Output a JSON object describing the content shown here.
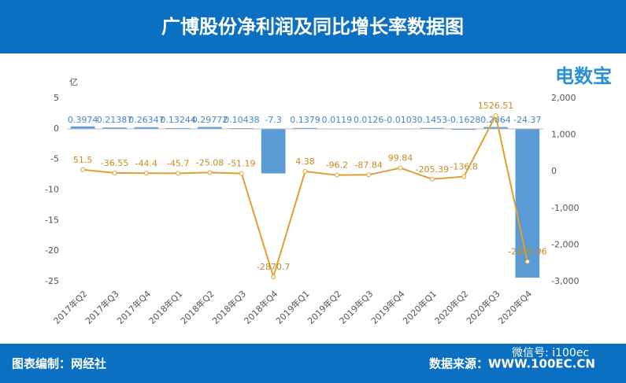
{
  "header": {
    "title": "广博股份净利润及同比增长率数据图"
  },
  "logo": {
    "text": "电数宝"
  },
  "footer": {
    "left": "图表编制：网经社",
    "right": "数据来源：WWW.100EC.CN",
    "wechat": "微信号: i100ec"
  },
  "chart_data": {
    "type": "bar",
    "y_unit": "亿",
    "categories": [
      "2017年Q2",
      "2017年Q3",
      "2017年Q4",
      "2018年Q1",
      "2018年Q2",
      "2018年Q3",
      "2018年Q4",
      "2019年Q1",
      "2019年Q2",
      "2019年Q3",
      "2019年Q4",
      "2020年Q1",
      "2020年Q2",
      "2020年Q3",
      "2020年Q4"
    ],
    "series": [
      {
        "type": "bar",
        "color": "#5b9bd5",
        "values": [
          0.3974,
          0.21387,
          0.26347,
          0.13244,
          0.29772,
          0.10438,
          -7.3,
          0.1379,
          0.0119,
          0.0126,
          -0.0103,
          0.1453,
          -0.1628,
          0.2864,
          -24.37
        ]
      },
      {
        "type": "line",
        "axis": "y2",
        "color": "#e0a030",
        "values": [
          51.5,
          -36.55,
          -44.4,
          -45.7,
          -25.08,
          -51.19,
          -2870.7,
          4.38,
          -96.2,
          -87.84,
          99.84,
          -205.39,
          -136.8,
          1526.51,
          -2455.06
        ]
      }
    ],
    "ylim": [
      -25,
      5
    ],
    "yticks": [
      5,
      0,
      -5,
      -10,
      -15,
      -20,
      -25
    ],
    "y2lim": [
      -3000,
      2000
    ],
    "y2ticks": [
      {
        "value": 2000,
        "label": "2,000"
      },
      {
        "value": 1000,
        "label": "1,000"
      },
      0,
      {
        "value": -1000,
        "label": "-1,000"
      },
      {
        "value": -2000,
        "label": "-2,000"
      },
      {
        "value": -3000,
        "label": "-3,000"
      }
    ]
  }
}
